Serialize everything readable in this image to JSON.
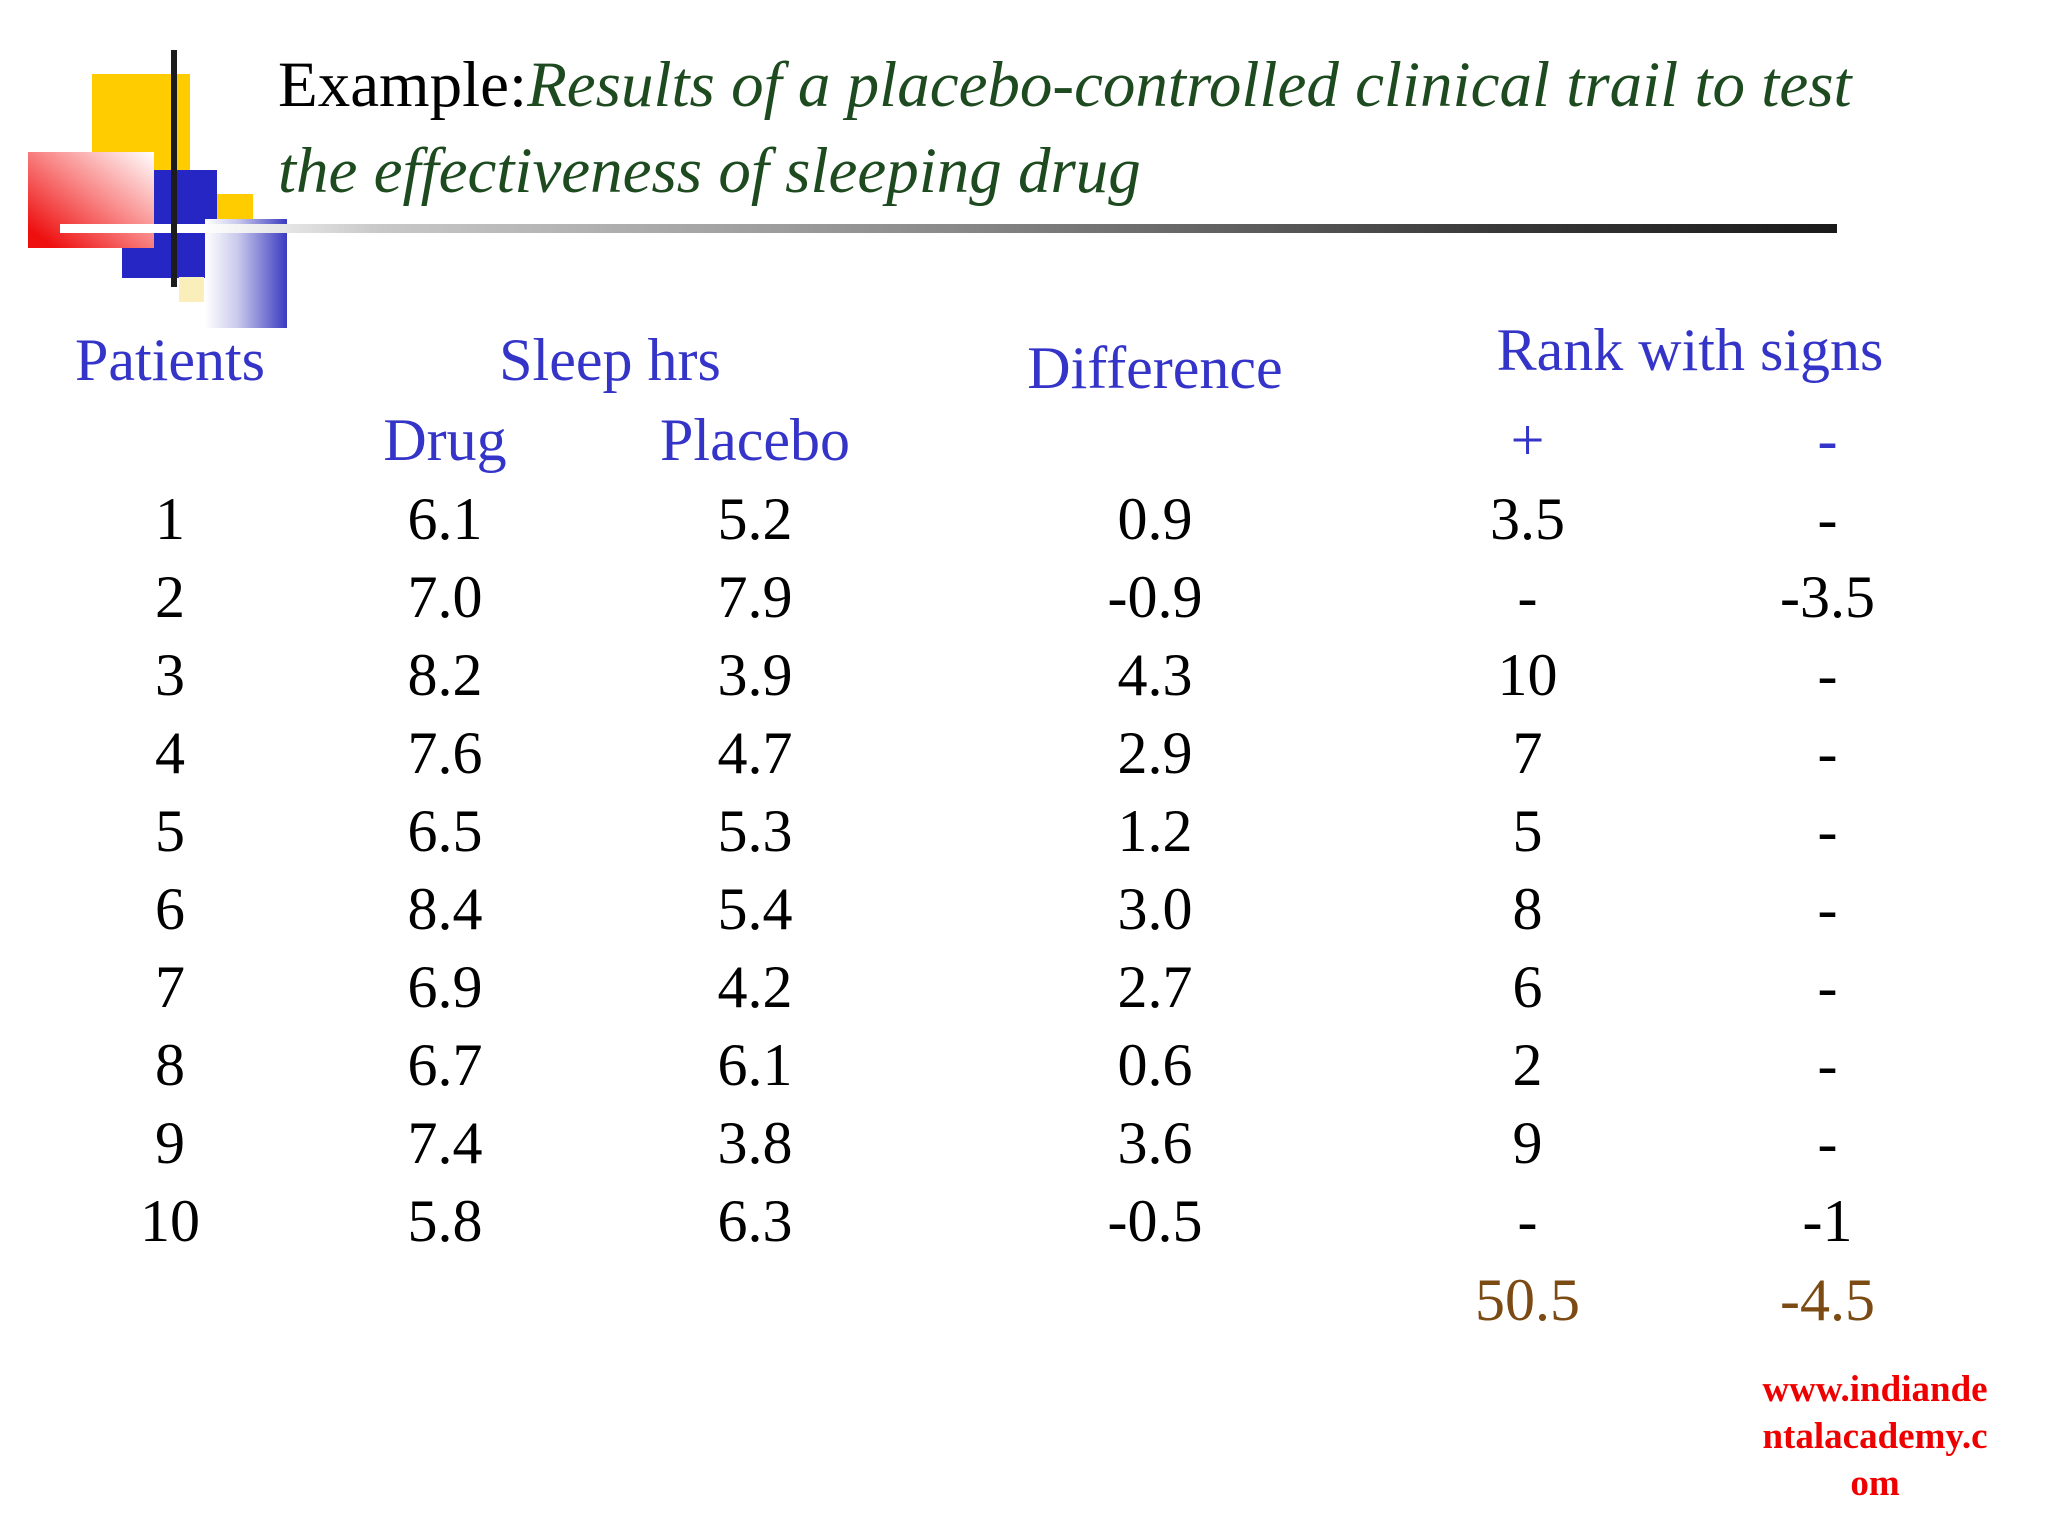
{
  "title": {
    "prefix": "Example:",
    "line1_italic": "Results of a placebo-controlled clinical trail to test",
    "line2_italic": "the effectiveness of sleeping drug"
  },
  "table": {
    "headers": {
      "patients": "Patients",
      "sleep_hrs": "Sleep hrs",
      "drug": "Drug",
      "placebo": "Placebo",
      "difference": "Difference",
      "rank": "Rank with signs",
      "plus": "+",
      "minus": "-"
    },
    "rows": [
      {
        "patient": "1",
        "drug": "6.1",
        "placebo": "5.2",
        "difference": "0.9",
        "rank_plus": "3.5",
        "rank_minus": "-"
      },
      {
        "patient": "2",
        "drug": "7.0",
        "placebo": "7.9",
        "difference": "-0.9",
        "rank_plus": "-",
        "rank_minus": "-3.5"
      },
      {
        "patient": "3",
        "drug": "8.2",
        "placebo": "3.9",
        "difference": "4.3",
        "rank_plus": "10",
        "rank_minus": "-"
      },
      {
        "patient": "4",
        "drug": "7.6",
        "placebo": "4.7",
        "difference": "2.9",
        "rank_plus": "7",
        "rank_minus": "-"
      },
      {
        "patient": "5",
        "drug": "6.5",
        "placebo": "5.3",
        "difference": "1.2",
        "rank_plus": "5",
        "rank_minus": "-"
      },
      {
        "patient": "6",
        "drug": "8.4",
        "placebo": "5.4",
        "difference": "3.0",
        "rank_plus": "8",
        "rank_minus": "-"
      },
      {
        "patient": "7",
        "drug": "6.9",
        "placebo": "4.2",
        "difference": "2.7",
        "rank_plus": "6",
        "rank_minus": "-"
      },
      {
        "patient": "8",
        "drug": "6.7",
        "placebo": "6.1",
        "difference": "0.6",
        "rank_plus": "2",
        "rank_minus": "-"
      },
      {
        "patient": "9",
        "drug": "7.4",
        "placebo": "3.8",
        "difference": "3.6",
        "rank_plus": "9",
        "rank_minus": "-"
      },
      {
        "patient": "10",
        "drug": "5.8",
        "placebo": "6.3",
        "difference": "-0.5",
        "rank_plus": "-",
        "rank_minus": "-1"
      }
    ],
    "totals": {
      "plus": "50.5",
      "minus": "-4.5"
    }
  },
  "footer": {
    "url_lines": [
      "www.indiande",
      "ntalacademy.c",
      "om"
    ]
  },
  "colors": {
    "header_blue": "#3434c8",
    "title_green": "#1d4a1f",
    "totals_brown": "#7b4b13",
    "url_red": "#ee0000",
    "logo_yellow": "#ffcc00",
    "logo_blue": "#2626c4",
    "logo_red": "#ee0f0f"
  }
}
